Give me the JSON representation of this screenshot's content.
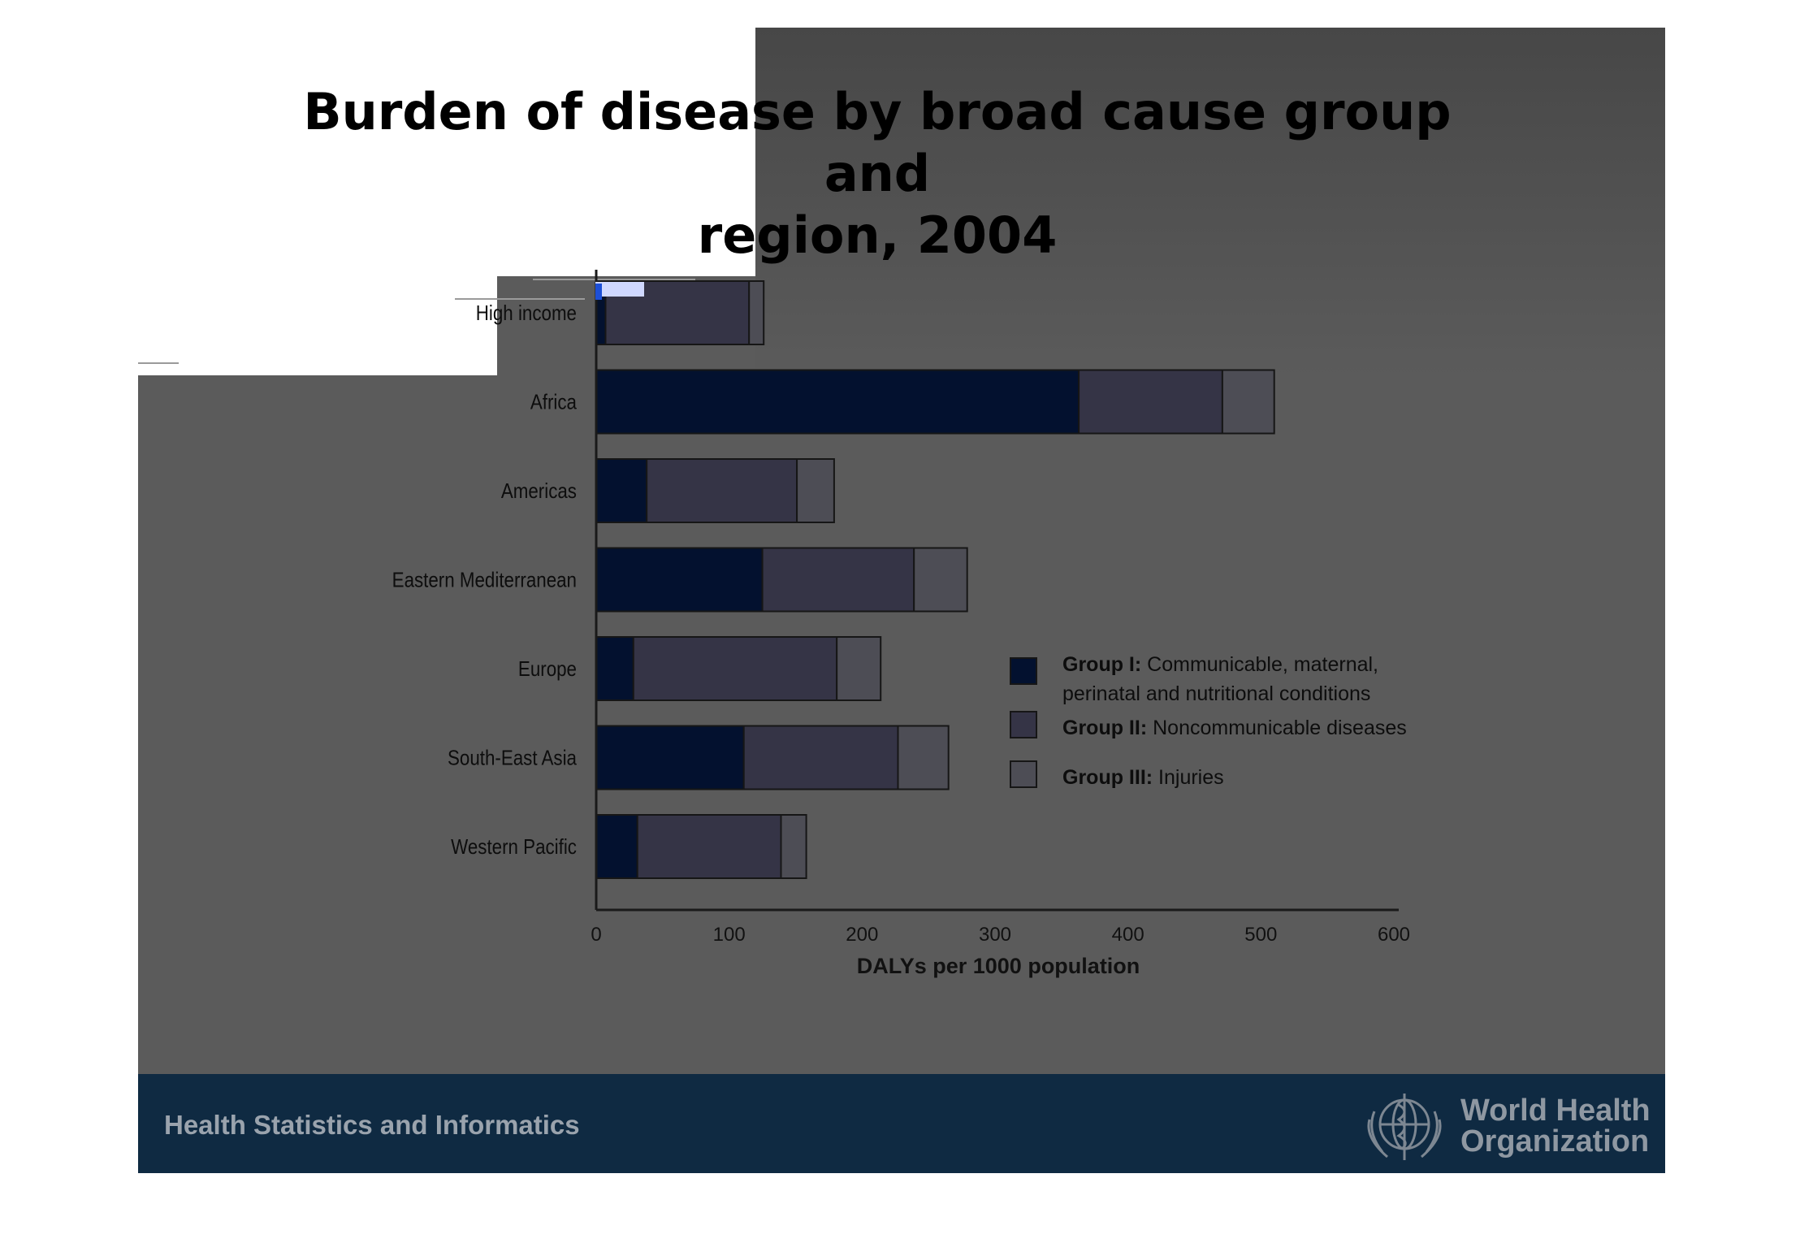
{
  "slide": {
    "title_line1": "Burden of disease by broad cause group and",
    "title_line2": "region, 2004",
    "footer_text": "Health Statistics and Informatics",
    "org_name_line1": "World Health",
    "org_name_line2": "Organization"
  },
  "colors": {
    "group1": "#03112f",
    "group2": "#353446",
    "group3": "#4d4d55",
    "axis": "#1a1a1a",
    "slide_bg": "#5b5b5b",
    "footer_bg": "#0f2a42"
  },
  "chart_data": {
    "type": "bar",
    "orientation": "horizontal",
    "stacked": true,
    "categories": [
      "High income",
      "Africa",
      "Americas",
      "Eastern Mediterranean",
      "Europe",
      "South-East Asia",
      "Western Pacific"
    ],
    "series": [
      {
        "name": "Group I: Communicable, maternal, perinatal and nutritional conditions",
        "label_bold": "Group I:",
        "label_rest": "Communicable, maternal,",
        "label_rest2": "perinatal and nutritional conditions",
        "values": [
          7,
          363,
          38,
          125,
          28,
          111,
          31
        ]
      },
      {
        "name": "Group II: Noncommunicable diseases",
        "label_bold": "Group II:",
        "label_rest": "Noncommunicable diseases",
        "values": [
          108,
          108,
          113,
          114,
          153,
          116,
          108
        ]
      },
      {
        "name": "Group III: Injuries",
        "label_bold": "Group III:",
        "label_rest": "Injuries",
        "values": [
          11,
          39,
          28,
          40,
          33,
          38,
          19
        ]
      }
    ],
    "xlabel": "DALYs per 1000 population",
    "xlim": [
      0,
      600
    ],
    "xticks": [
      0,
      100,
      200,
      300,
      400,
      500,
      600
    ],
    "legend_position": "right",
    "grid": false
  }
}
